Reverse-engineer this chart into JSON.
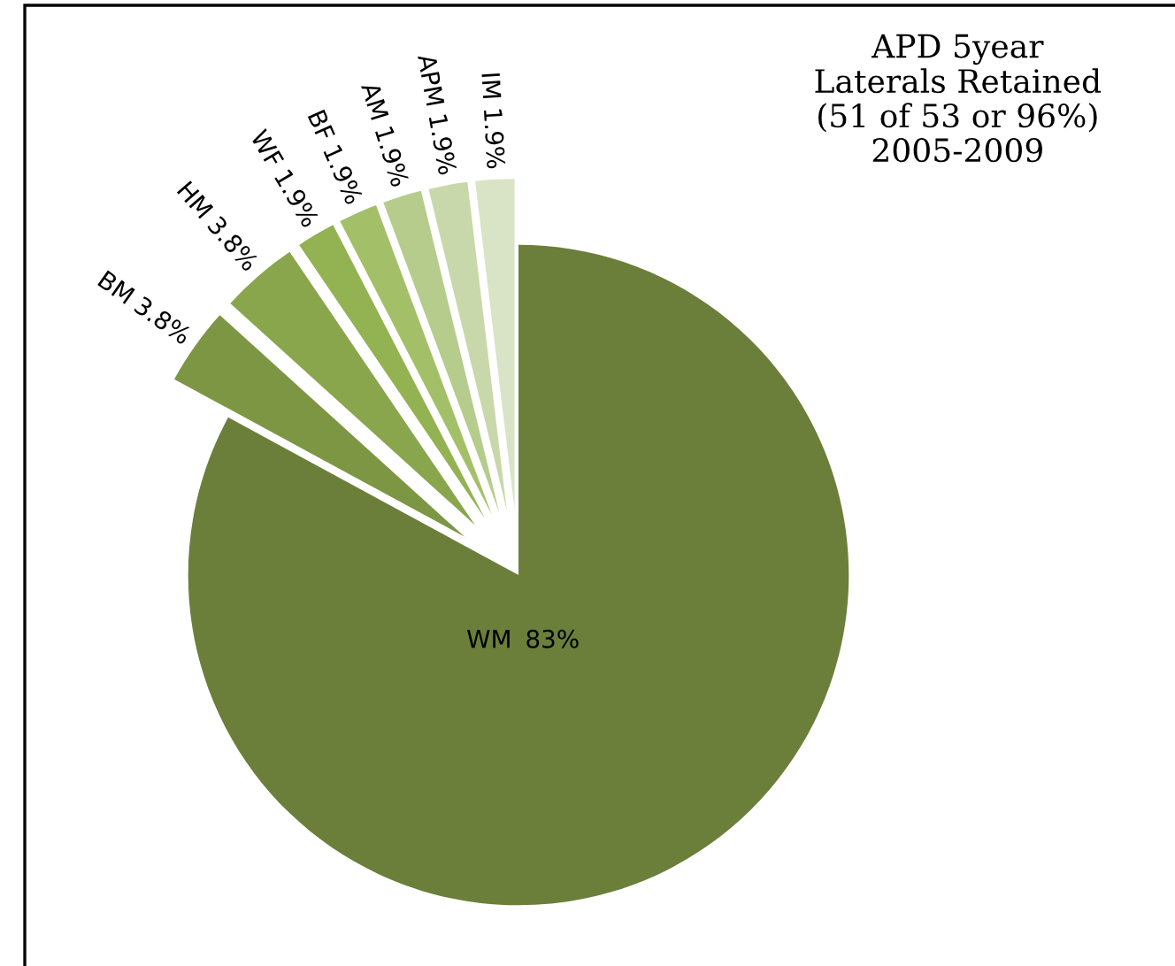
{
  "chart_data": {
    "type": "pie",
    "title": "APD 5year\nLaterals Retained\n(51 of 53 or 96%)\n2005-2009",
    "categories": [
      "WM",
      "BM",
      "HM",
      "WF",
      "BF",
      "AM",
      "APM",
      "IM"
    ],
    "values": [
      83,
      3.8,
      3.8,
      1.9,
      1.9,
      1.9,
      1.9,
      1.9
    ],
    "colors": [
      "#6b7f3b",
      "#7d9644",
      "#8aa64d",
      "#93b252",
      "#a3c068",
      "#b5cc8c",
      "#c8d8aa",
      "#d9e3c6"
    ],
    "value_labels": [
      "83%",
      "3.8%",
      "3.8%",
      "1.9%",
      "1.9%",
      "1.9%",
      "1.9%",
      "1.9%"
    ],
    "legend": false
  }
}
